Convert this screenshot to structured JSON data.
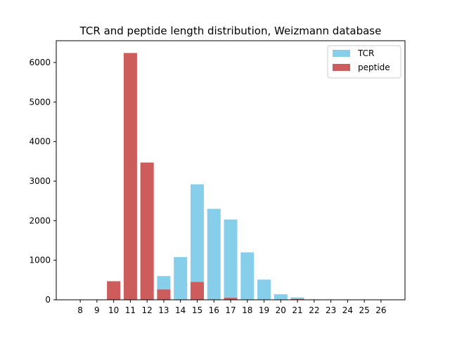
{
  "chart_data": {
    "type": "bar",
    "title": "TCR and peptide length distribution, Weizmann database",
    "xlabel": "",
    "ylabel": "",
    "categories": [
      "8",
      "9",
      "10",
      "11",
      "12",
      "13",
      "14",
      "15",
      "16",
      "17",
      "18",
      "19",
      "20",
      "21",
      "22",
      "23",
      "24",
      "25",
      "26"
    ],
    "ylim": [
      0,
      6550
    ],
    "yticks": [
      0,
      1000,
      2000,
      3000,
      4000,
      5000,
      6000
    ],
    "grid": false,
    "legend_position": "top-right",
    "overlay": true,
    "series": [
      {
        "name": "TCR",
        "color": "#87ceeb",
        "values": [
          0,
          0,
          0,
          0,
          0,
          600,
          1080,
          2920,
          2300,
          2030,
          1200,
          510,
          140,
          60,
          5,
          0,
          0,
          0,
          0
        ]
      },
      {
        "name": "peptide",
        "color": "#cd5c5c",
        "values": [
          0,
          0,
          470,
          6240,
          3470,
          260,
          0,
          450,
          0,
          50,
          0,
          0,
          0,
          20,
          10,
          0,
          0,
          0,
          0
        ]
      }
    ]
  }
}
